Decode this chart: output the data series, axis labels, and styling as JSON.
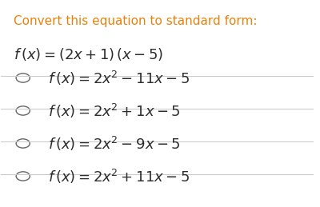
{
  "title": "Convert this equation to standard form:",
  "title_color": "#E8820C",
  "question": "f\\,(x) = (2x+1)\\,(x-5)",
  "options": [
    "f\\,(x) = 2x^2 - 11x - 5",
    "f\\,(x) = 2x^2 + 1x - 5",
    "f\\,(x) = 2x^2 - 9x - 5",
    "f\\,(x) = 2x^2 + 11x - 5"
  ],
  "background_color": "#ffffff",
  "text_color": "#2d2d2d",
  "divider_color": "#cccccc",
  "circle_color": "#666666",
  "font_size_title": 11,
  "font_size_question": 13,
  "font_size_options": 13
}
